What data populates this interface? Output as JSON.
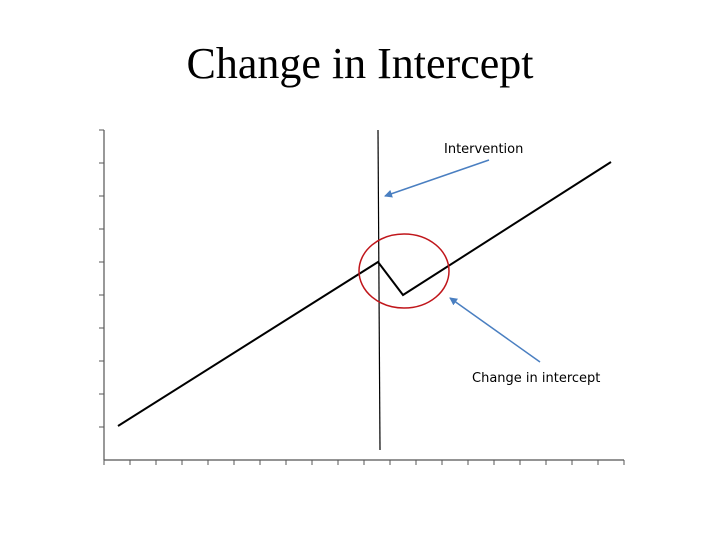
{
  "title": "Change in Intercept",
  "annotations": {
    "intervention": "Intervention",
    "change_in_intercept": "Change in intercept"
  },
  "colors": {
    "axis": "#555555",
    "trend_line": "#000000",
    "intervention_line": "#000000",
    "arrow": "#4a7fc1",
    "highlight_circle": "#c0161b"
  },
  "axes": {
    "y_tick_count": 10,
    "x_tick_count": 21
  }
}
